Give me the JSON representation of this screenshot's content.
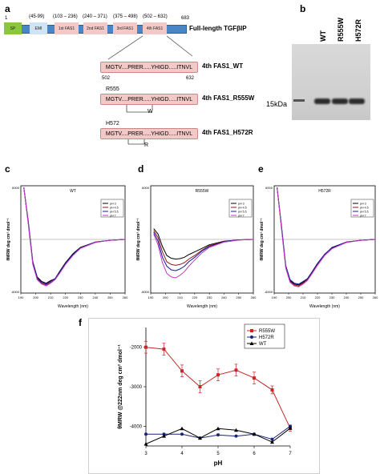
{
  "panel_a": {
    "label": "a",
    "total_len": "683",
    "start": "1",
    "segments": [
      {
        "name": "SP",
        "range": ""
      },
      {
        "name": "EMI",
        "range": "(45-99)"
      },
      {
        "name": "1st FAS1",
        "range": "(103 – 236)"
      },
      {
        "name": "2nd FAS1",
        "range": "(240 – 371)"
      },
      {
        "name": "3rd FAS1",
        "range": "(375 – 498)"
      },
      {
        "name": "4th FAS1",
        "range": "(502 – 632)"
      }
    ],
    "full_length_label": "Full-length TGFβIP",
    "domain_seq": "MGTV....PRER.....YHIGD.....ITNVL",
    "constructs": [
      {
        "label": "4th FAS1_WT",
        "start": "502",
        "end": "632",
        "mut_site": "",
        "mut_res": ""
      },
      {
        "label": "4th FAS1_R555W",
        "mut_site": "R555",
        "mut_res": "W"
      },
      {
        "label": "4th FAS1_H572R",
        "mut_site": "H572",
        "mut_res": "R"
      }
    ]
  },
  "panel_b": {
    "label": "b",
    "lanes": [
      "WT",
      "R555W",
      "H572R"
    ],
    "marker": "15kDa"
  },
  "cd_panels": [
    {
      "label": "c",
      "title": "WT",
      "ylabel": "θMRW deg cm² dmol⁻¹",
      "xlabel": "Wavelength (nm)",
      "ytick_top": "6000",
      "ytick_bottom": "-6000",
      "xticks": [
        "190",
        "200",
        "210",
        "220",
        "230",
        "240",
        "250",
        "260"
      ]
    },
    {
      "label": "d",
      "title": "R555W",
      "ylabel": "θMRW deg cm² dmol⁻¹",
      "xlabel": "Wavelength (nm)",
      "ytick_top": "6000",
      "ytick_bottom": "-6000",
      "xticks": [
        "190",
        "200",
        "210",
        "220",
        "230",
        "240",
        "250",
        "260"
      ]
    },
    {
      "label": "e",
      "title": "H572R",
      "ylabel": "θMRW deg cm² dmol⁻¹",
      "xlabel": "Wavelength (nm)",
      "ytick_top": "6000",
      "ytick_bottom": "-6000",
      "xticks": [
        "190",
        "200",
        "210",
        "220",
        "230",
        "240",
        "250",
        "260"
      ]
    }
  ],
  "cd_legend": [
    {
      "name": "pH 3",
      "color": "#000000"
    },
    {
      "name": "pH 4.5",
      "color": "#8b1a1a"
    },
    {
      "name": "pH 5.5",
      "color": "#1a1aa0"
    },
    {
      "name": "pH 7",
      "color": "#c23bc2"
    }
  ],
  "panel_f": {
    "label": "f",
    "ylabel": "θMRW @222nm deg cm² dmol⁻¹",
    "xlabel": "pH"
  },
  "chart_data": [
    {
      "type": "line",
      "panel": "c",
      "title": "WT",
      "xlabel": "Wavelength (nm)",
      "ylabel": "θMRW deg cm² dmol⁻¹",
      "xlim": [
        190,
        260
      ],
      "ylim": [
        -6000,
        6000
      ],
      "x": [
        192,
        195,
        198,
        201,
        204,
        207,
        210,
        213,
        216,
        220,
        225,
        230,
        240,
        250,
        260
      ],
      "series": [
        {
          "name": "pH 3",
          "values": [
            5800,
            2000,
            -2500,
            -4200,
            -4700,
            -4900,
            -4600,
            -4400,
            -3600,
            -2600,
            -1600,
            -900,
            -300,
            -100,
            0
          ]
        },
        {
          "name": "pH 4.5",
          "values": [
            5800,
            1800,
            -2700,
            -4400,
            -4900,
            -5100,
            -4800,
            -4500,
            -3800,
            -2700,
            -1700,
            -1000,
            -300,
            -100,
            0
          ]
        },
        {
          "name": "pH 5.5",
          "values": [
            5800,
            1900,
            -2600,
            -4300,
            -4800,
            -5000,
            -4700,
            -4400,
            -3700,
            -2700,
            -1700,
            -950,
            -300,
            -100,
            0
          ]
        },
        {
          "name": "pH 7",
          "values": [
            5800,
            1700,
            -2800,
            -4500,
            -5000,
            -5200,
            -4900,
            -4500,
            -3800,
            -2800,
            -1800,
            -1000,
            -350,
            -100,
            0
          ]
        }
      ]
    },
    {
      "type": "line",
      "panel": "d",
      "title": "R555W",
      "xlabel": "Wavelength (nm)",
      "ylabel": "θMRW deg cm² dmol⁻¹",
      "xlim": [
        190,
        260
      ],
      "ylim": [
        -6000,
        6000
      ],
      "x": [
        192,
        195,
        198,
        201,
        204,
        207,
        210,
        213,
        216,
        220,
        225,
        230,
        240,
        250,
        260
      ],
      "series": [
        {
          "name": "pH 3",
          "values": [
            1200,
            600,
            -800,
            -1800,
            -2100,
            -2200,
            -2150,
            -2000,
            -1700,
            -1400,
            -1000,
            -600,
            -200,
            -50,
            0
          ]
        },
        {
          "name": "pH 4.5",
          "values": [
            1000,
            200,
            -1400,
            -2500,
            -2800,
            -2900,
            -2800,
            -2600,
            -2200,
            -1800,
            -1200,
            -700,
            -250,
            -50,
            0
          ]
        },
        {
          "name": "pH 5.5",
          "values": [
            800,
            -200,
            -2000,
            -3000,
            -3400,
            -3500,
            -3300,
            -3000,
            -2500,
            -2000,
            -1300,
            -800,
            -250,
            -50,
            0
          ]
        },
        {
          "name": "pH 7",
          "values": [
            600,
            -600,
            -2600,
            -3800,
            -4200,
            -4300,
            -4000,
            -3600,
            -3000,
            -2300,
            -1500,
            -900,
            -300,
            -80,
            0
          ]
        }
      ]
    },
    {
      "type": "line",
      "panel": "e",
      "title": "H572R",
      "xlabel": "Wavelength (nm)",
      "ylabel": "θMRW deg cm² dmol⁻¹",
      "xlim": [
        190,
        260
      ],
      "ylim": [
        -6000,
        6000
      ],
      "x": [
        192,
        195,
        198,
        201,
        204,
        207,
        210,
        213,
        216,
        220,
        225,
        230,
        240,
        250,
        260
      ],
      "series": [
        {
          "name": "pH 3",
          "values": [
            5800,
            1500,
            -3000,
            -4600,
            -5000,
            -5100,
            -4800,
            -4400,
            -3700,
            -2700,
            -1700,
            -900,
            -300,
            -100,
            0
          ]
        },
        {
          "name": "pH 4.5",
          "values": [
            5800,
            1400,
            -3100,
            -4700,
            -5100,
            -5200,
            -4900,
            -4500,
            -3800,
            -2800,
            -1700,
            -1000,
            -300,
            -100,
            0
          ]
        },
        {
          "name": "pH 5.5",
          "values": [
            5800,
            1600,
            -2900,
            -4500,
            -4900,
            -5000,
            -4700,
            -4400,
            -3700,
            -2700,
            -1650,
            -950,
            -300,
            -100,
            0
          ]
        },
        {
          "name": "pH 7",
          "values": [
            5800,
            1300,
            -3200,
            -4800,
            -5200,
            -5300,
            -5000,
            -4600,
            -3900,
            -2900,
            -1800,
            -1050,
            -350,
            -100,
            0
          ]
        }
      ]
    },
    {
      "type": "line",
      "panel": "f",
      "xlabel": "pH",
      "ylabel": "θMRW @222nm deg cm² dmol⁻¹",
      "xlim": [
        3,
        7
      ],
      "ylim": [
        -4500,
        -1500
      ],
      "xticks": [
        3,
        4,
        5,
        6,
        7
      ],
      "yticks": [
        -2000,
        -3000,
        -4000
      ],
      "legend_position": "top-right",
      "x": [
        3,
        3.5,
        4,
        4.5,
        5,
        5.5,
        6,
        6.5,
        7
      ],
      "series": [
        {
          "name": "R555W",
          "color": "#c62828",
          "marker": "square",
          "values": [
            -2000,
            -2050,
            -2600,
            -3000,
            -2700,
            -2580,
            -2780,
            -3080,
            -4050
          ],
          "errors": [
            150,
            150,
            150,
            150,
            150,
            150,
            150,
            100,
            80
          ]
        },
        {
          "name": "H572R",
          "color": "#1a237e",
          "marker": "circle",
          "values": [
            -4200,
            -4200,
            -4200,
            -4300,
            -4220,
            -4250,
            -4200,
            -4330,
            -4000
          ]
        },
        {
          "name": "WT",
          "color": "#000000",
          "marker": "triangle",
          "values": [
            -4450,
            -4250,
            -4060,
            -4300,
            -4060,
            -4100,
            -4200,
            -4400,
            -4050
          ]
        }
      ]
    }
  ]
}
